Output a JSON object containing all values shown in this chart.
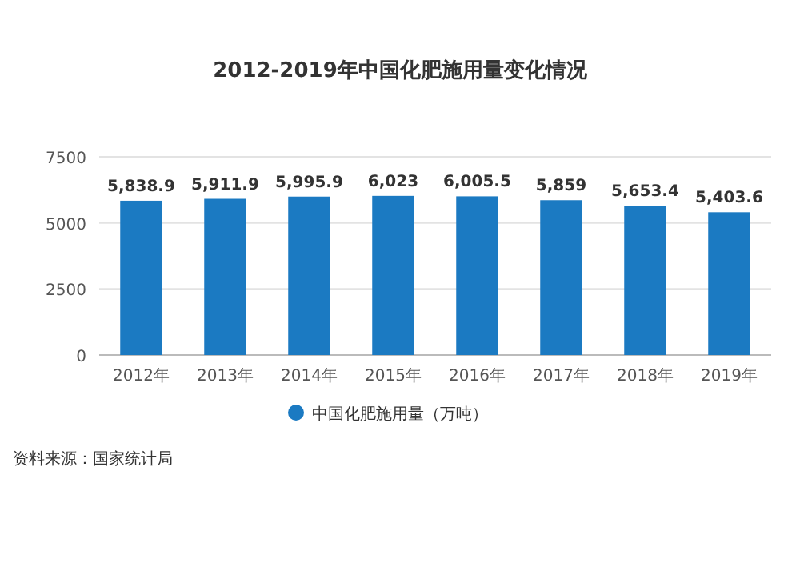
{
  "chart_data": {
    "type": "bar",
    "title": "2012-2019年中国化肥施用量变化情况",
    "categories": [
      "2012年",
      "2013年",
      "2014年",
      "2015年",
      "2016年",
      "2017年",
      "2018年",
      "2019年"
    ],
    "series": [
      {
        "name": "中国化肥施用量（万吨）",
        "color": "#1b7ac2",
        "values": [
          5838.9,
          5911.9,
          5995.9,
          6023,
          6005.5,
          5859,
          5653.4,
          5403.6
        ],
        "value_labels": [
          "5,838.9",
          "5,911.9",
          "5,995.9",
          "6,023",
          "6,005.5",
          "5,859",
          "5,653.4",
          "5,403.6"
        ]
      }
    ],
    "ylim": [
      0,
      7500
    ],
    "yticks": [
      0,
      2500,
      5000,
      7500
    ],
    "grid": "y",
    "legend": "bottom",
    "marker": "circle",
    "annotations": [
      "资料来源：国家统计局"
    ]
  }
}
